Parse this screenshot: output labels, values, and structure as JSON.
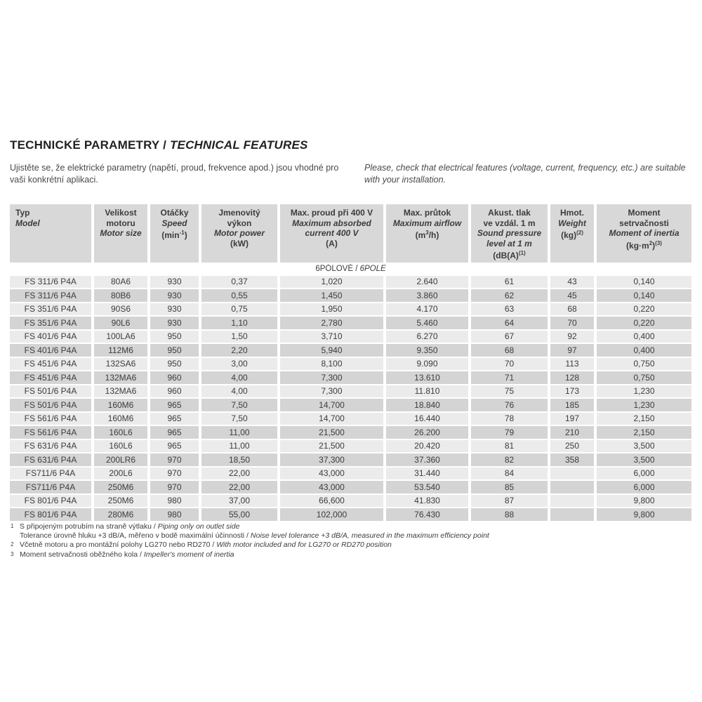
{
  "page": {
    "title_cs": "TECHNICKÉ PARAMETRY",
    "title_sep": " / ",
    "title_en": "TECHNICAL FEATURES",
    "intro_cs": "Ujistěte se, že elektrické parametry (napětí, proud, frekvence apod.) jsou vhodné pro vaši konkrétní aplikaci.",
    "intro_en": "Please, check that electrical features (voltage, current, frequency, etc.) are suitable with your installation."
  },
  "colors": {
    "header_cell_bg": "#d8d8d8",
    "row_odd_bg": "#ebebeb",
    "row_even_bg": "#d4d4d4",
    "section_row_bg": "#ffffff",
    "text": "#3c3c3c"
  },
  "table": {
    "section": {
      "cs": "6PÓLOVÉ",
      "sep": " / ",
      "en": "6POLE"
    },
    "columns": [
      {
        "id": "model",
        "align": "left",
        "lines": [
          {
            "seg": [
              {
                "t": "Typ"
              }
            ]
          },
          {
            "it": true,
            "seg": [
              {
                "t": "Model"
              }
            ]
          }
        ]
      },
      {
        "id": "motor-size",
        "lines": [
          {
            "seg": [
              {
                "t": "Velikost"
              }
            ]
          },
          {
            "seg": [
              {
                "t": "motoru"
              }
            ]
          },
          {
            "it": true,
            "seg": [
              {
                "t": "Motor size"
              }
            ]
          }
        ]
      },
      {
        "id": "speed",
        "lines": [
          {
            "seg": [
              {
                "t": "Otáčky"
              }
            ]
          },
          {
            "it": true,
            "seg": [
              {
                "t": "Speed"
              }
            ]
          },
          {
            "seg": [
              {
                "t": "(min"
              },
              {
                "t": "-1",
                "sup": true
              },
              {
                "t": ")"
              }
            ]
          }
        ]
      },
      {
        "id": "motor-power",
        "lines": [
          {
            "seg": [
              {
                "t": "Jmenovitý"
              }
            ]
          },
          {
            "seg": [
              {
                "t": "výkon"
              }
            ]
          },
          {
            "it": true,
            "seg": [
              {
                "t": "Motor power"
              }
            ]
          },
          {
            "seg": [
              {
                "t": "(kW)"
              }
            ]
          }
        ]
      },
      {
        "id": "max-current",
        "lines": [
          {
            "seg": [
              {
                "t": "Max. proud při 400 V"
              }
            ]
          },
          {
            "it": true,
            "seg": [
              {
                "t": "Maximum absorbed"
              }
            ]
          },
          {
            "it": true,
            "seg": [
              {
                "t": "current 400 V"
              }
            ]
          },
          {
            "seg": [
              {
                "t": "(A)"
              }
            ]
          }
        ]
      },
      {
        "id": "max-airflow",
        "lines": [
          {
            "seg": [
              {
                "t": "Max. průtok"
              }
            ]
          },
          {
            "it": true,
            "seg": [
              {
                "t": "Maximum airflow"
              }
            ]
          },
          {
            "seg": [
              {
                "t": "(m"
              },
              {
                "t": "3",
                "sup": true
              },
              {
                "t": "/h)"
              }
            ]
          }
        ]
      },
      {
        "id": "sound-pressure",
        "lines": [
          {
            "seg": [
              {
                "t": "Akust. tlak"
              }
            ]
          },
          {
            "seg": [
              {
                "t": "ve vzdál. 1 m"
              }
            ]
          },
          {
            "it": true,
            "seg": [
              {
                "t": "Sound pressure"
              }
            ]
          },
          {
            "it": true,
            "seg": [
              {
                "t": "level at 1 m"
              }
            ]
          },
          {
            "seg": [
              {
                "t": "(dB(A)"
              },
              {
                "t": "(1)",
                "sup": true
              }
            ]
          }
        ]
      },
      {
        "id": "weight",
        "lines": [
          {
            "seg": [
              {
                "t": "Hmot."
              }
            ]
          },
          {
            "it": true,
            "seg": [
              {
                "t": "Weight"
              }
            ]
          },
          {
            "seg": [
              {
                "t": "(kg)"
              },
              {
                "t": "(2)",
                "sup": true
              }
            ]
          }
        ]
      },
      {
        "id": "moment-of-inertia",
        "lines": [
          {
            "seg": [
              {
                "t": "Moment"
              }
            ]
          },
          {
            "seg": [
              {
                "t": "setrvačnosti"
              }
            ]
          },
          {
            "it": true,
            "seg": [
              {
                "t": "Moment of inertia"
              }
            ]
          },
          {
            "seg": [
              {
                "t": "(kg·m"
              },
              {
                "t": "2",
                "sup": true
              },
              {
                "t": ")"
              },
              {
                "t": "(3)",
                "sup": true
              }
            ]
          }
        ]
      }
    ],
    "rows": [
      [
        "FS 311/6 P4A",
        "80A6",
        "930",
        "0,37",
        "1,020",
        "2.640",
        "61",
        "43",
        "0,140"
      ],
      [
        "FS 311/6 P4A",
        "80B6",
        "930",
        "0,55",
        "1,450",
        "3.860",
        "62",
        "45",
        "0,140"
      ],
      [
        "FS 351/6 P4A",
        "90S6",
        "930",
        "0,75",
        "1,950",
        "4.170",
        "63",
        "68",
        "0,220"
      ],
      [
        "FS 351/6 P4A",
        "90L6",
        "930",
        "1,10",
        "2,780",
        "5.460",
        "64",
        "70",
        "0,220"
      ],
      [
        "FS 401/6 P4A",
        "100LA6",
        "950",
        "1,50",
        "3,710",
        "6.270",
        "67",
        "92",
        "0,400"
      ],
      [
        "FS 401/6 P4A",
        "112M6",
        "950",
        "2,20",
        "5,940",
        "9.350",
        "68",
        "97",
        "0,400"
      ],
      [
        "FS 451/6 P4A",
        "132SA6",
        "950",
        "3,00",
        "8,100",
        "9.090",
        "70",
        "113",
        "0,750"
      ],
      [
        "FS 451/6 P4A",
        "132MA6",
        "960",
        "4,00",
        "7,300",
        "13.610",
        "71",
        "128",
        "0,750"
      ],
      [
        "FS 501/6 P4A",
        "132MA6",
        "960",
        "4,00",
        "7,300",
        "11.810",
        "75",
        "173",
        "1,230"
      ],
      [
        "FS 501/6 P4A",
        "160M6",
        "965",
        "7,50",
        "14,700",
        "18.840",
        "76",
        "185",
        "1,230"
      ],
      [
        "FS 561/6 P4A",
        "160M6",
        "965",
        "7,50",
        "14,700",
        "16.440",
        "78",
        "197",
        "2,150"
      ],
      [
        "FS 561/6 P4A",
        "160L6",
        "965",
        "11,00",
        "21,500",
        "26.200",
        "79",
        "210",
        "2,150"
      ],
      [
        "FS 631/6 P4A",
        "160L6",
        "965",
        "11,00",
        "21,500",
        "20.420",
        "81",
        "250",
        "3,500"
      ],
      [
        "FS 631/6 P4A",
        "200LR6",
        "970",
        "18,50",
        "37,300",
        "37.360",
        "82",
        "358",
        "3,500"
      ],
      [
        "FS711/6 P4A",
        "200L6",
        "970",
        "22,00",
        "43,000",
        "31.440",
        "84",
        "",
        "6,000"
      ],
      [
        "FS711/6 P4A",
        "250M6",
        "970",
        "22,00",
        "43,000",
        "53.540",
        "85",
        "",
        "6,000"
      ],
      [
        "FS 801/6 P4A",
        "250M6",
        "980",
        "37,00",
        "66,600",
        "41.830",
        "87",
        "",
        "9,800"
      ],
      [
        "FS 801/6 P4A",
        "280M6",
        "980",
        "55,00",
        "102,000",
        "76.430",
        "88",
        "",
        "9,800"
      ]
    ]
  },
  "footnotes": [
    {
      "sup": "1",
      "parts": [
        {
          "t": "S připojeným potrubím na straně výtlaku / "
        },
        {
          "t": "Piping only on outlet side",
          "it": true
        }
      ]
    },
    {
      "sup": "",
      "parts": [
        {
          "t": "Tolerance úrovně hluku +3 dB/A, měřeno v bodě maximální účinnosti / "
        },
        {
          "t": "Noise level tolerance +3 dB/A, measured in the maximum efficiency point",
          "it": true
        }
      ]
    },
    {
      "sup": "2",
      "parts": [
        {
          "t": "Včetně motoru a pro montážní polohy LG270 nebo RD270 / "
        },
        {
          "t": "With motor included and for LG270 or RD270 position",
          "it": true
        }
      ]
    },
    {
      "sup": "3",
      "parts": [
        {
          "t": "Moment setrvačnosti oběžného kola / "
        },
        {
          "t": "Impeller's moment of inertia",
          "it": true
        }
      ]
    }
  ]
}
